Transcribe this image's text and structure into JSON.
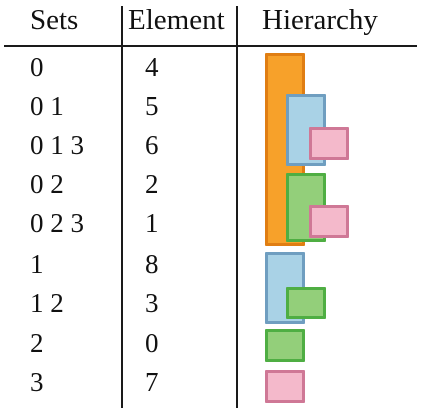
{
  "table": {
    "headers": {
      "sets": "Sets",
      "element": "Element",
      "hierarchy": "Hierarchy"
    },
    "rows": [
      {
        "sets": "0",
        "element": "4"
      },
      {
        "sets": "0 1",
        "element": "5"
      },
      {
        "sets": "0 1 3",
        "element": "6"
      },
      {
        "sets": "0 2",
        "element": "2"
      },
      {
        "sets": "0 2 3",
        "element": "1"
      },
      {
        "sets": "1",
        "element": "8"
      },
      {
        "sets": "1 2",
        "element": "3"
      },
      {
        "sets": "2",
        "element": "0"
      },
      {
        "sets": "3",
        "element": "7"
      }
    ]
  },
  "colors": {
    "set0": "#f7a12a",
    "set1": "#a9d2e6",
    "set2": "#93cf7a",
    "set3": "#f4b9cb"
  }
}
